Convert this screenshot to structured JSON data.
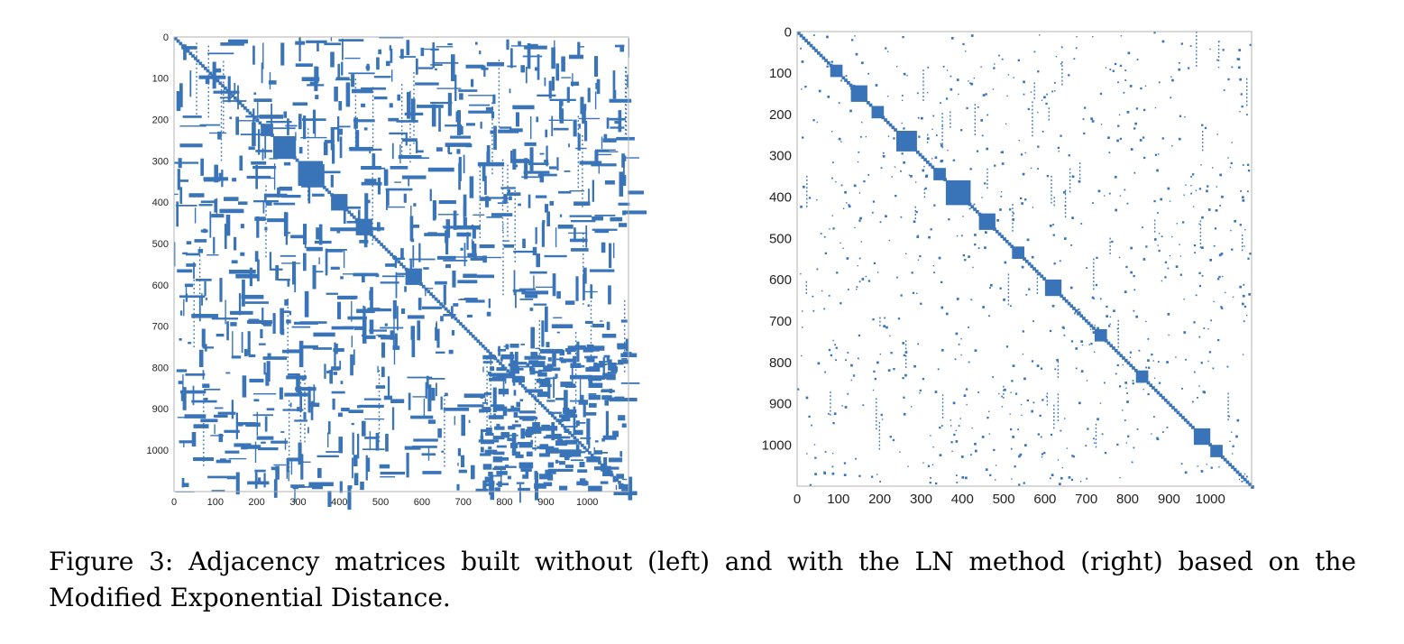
{
  "figure": {
    "caption": "Figure 3: Adjacency matrices built without (left) and with the LN method (right) based on the Modified Exponential Distance."
  },
  "colors": {
    "marker": "#3a74b8",
    "frame": "#b0b0b0"
  },
  "chart_data": [
    {
      "type": "heatmap",
      "title": "",
      "xlabel": "",
      "ylabel": "",
      "xlim": [
        0,
        1100
      ],
      "ylim": [
        1100,
        0
      ],
      "x_ticks": [
        "0",
        "100",
        "200",
        "300",
        "400",
        "500",
        "600",
        "700",
        "800",
        "900",
        "1000"
      ],
      "y_ticks": [
        "0",
        "100",
        "200",
        "300",
        "400",
        "500",
        "600",
        "700",
        "800",
        "900",
        "1000"
      ],
      "grid": false,
      "density": "dense",
      "diagonal_blocks": [
        [
          210,
          240
        ],
        [
          240,
          295
        ],
        [
          300,
          360
        ],
        [
          380,
          420
        ],
        [
          440,
          480
        ],
        [
          560,
          600
        ]
      ]
    },
    {
      "type": "heatmap",
      "title": "",
      "xlabel": "",
      "ylabel": "",
      "xlim": [
        0,
        1100
      ],
      "ylim": [
        1100,
        0
      ],
      "x_ticks": [
        "0",
        "100",
        "200",
        "300",
        "400",
        "500",
        "600",
        "700",
        "800",
        "900",
        "1000"
      ],
      "y_ticks": [
        "0",
        "100",
        "200",
        "300",
        "400",
        "500",
        "600",
        "700",
        "800",
        "900",
        "1000"
      ],
      "grid": false,
      "density": "sparse",
      "diagonal_blocks": [
        [
          80,
          110
        ],
        [
          130,
          170
        ],
        [
          180,
          210
        ],
        [
          240,
          290
        ],
        [
          330,
          360
        ],
        [
          360,
          420
        ],
        [
          440,
          480
        ],
        [
          520,
          550
        ],
        [
          600,
          640
        ],
        [
          720,
          750
        ],
        [
          820,
          850
        ],
        [
          960,
          1000
        ],
        [
          1000,
          1030
        ]
      ]
    }
  ]
}
